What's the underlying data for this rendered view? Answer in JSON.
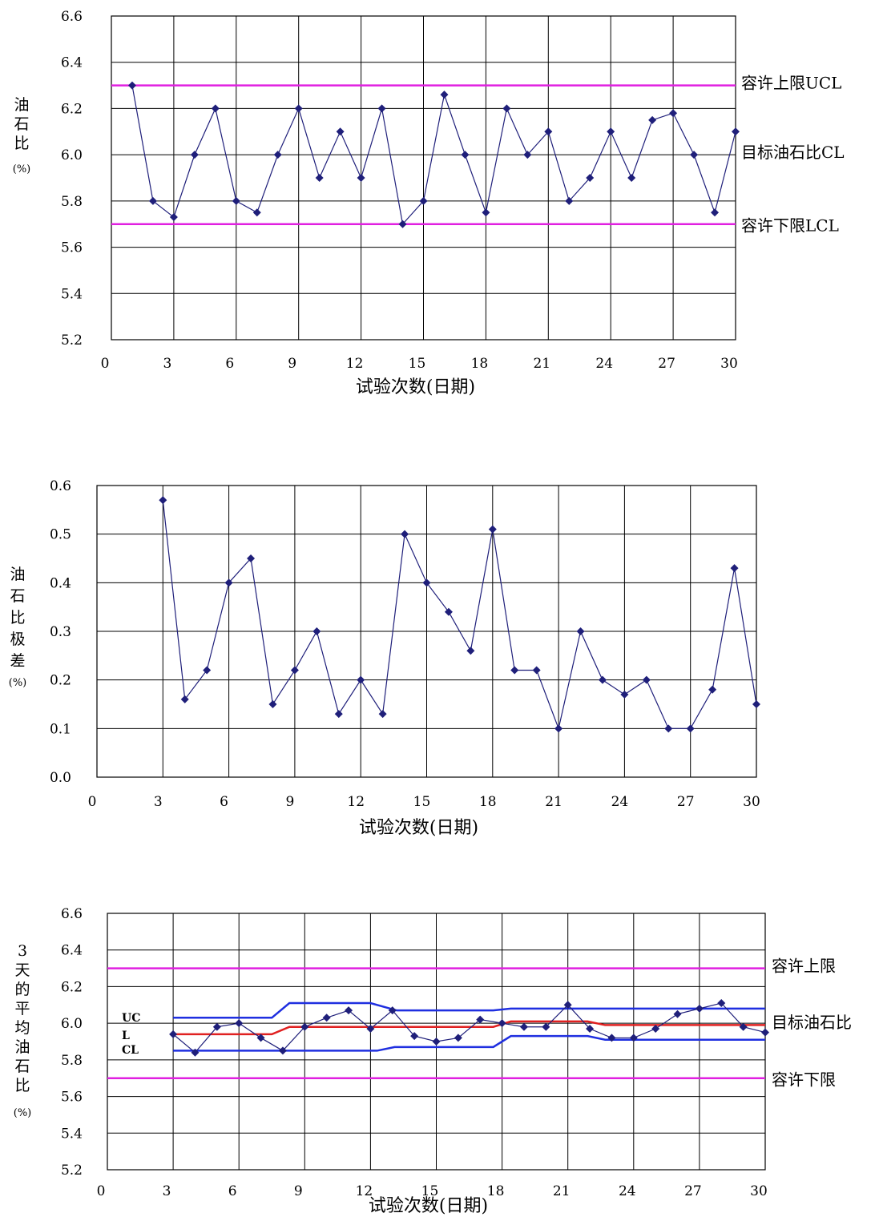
{
  "chart_data": [
    {
      "type": "line",
      "xlabel": "试验次数(日期)",
      "ylabel": [
        "油",
        "石",
        "比"
      ],
      "yunit": "(%)",
      "xlim": [
        0,
        30
      ],
      "ylim": [
        5.2,
        6.6
      ],
      "xticks": [
        "0",
        "3",
        "6",
        "9",
        "12",
        "15",
        "18",
        "21",
        "24",
        "27",
        "30"
      ],
      "yticks": [
        "5.2",
        "5.4",
        "5.6",
        "5.8",
        "6.0",
        "6.2",
        "6.4",
        "6.6"
      ],
      "grid": true,
      "colors": {
        "series": "#1f1f7a",
        "limit": "#e020e0"
      },
      "hlines": [
        {
          "label": "容许上限UCL",
          "value": 6.3,
          "color": "#e020e0"
        },
        {
          "label": "目标油石比CL",
          "value": 6.0,
          "color": "none"
        },
        {
          "label": "容许下限LCL",
          "value": 5.7,
          "color": "#e020e0"
        }
      ],
      "series": [
        {
          "x": [
            1,
            2,
            3,
            4,
            5,
            6,
            7,
            8,
            9,
            10,
            11,
            12,
            13,
            14,
            15,
            16,
            17,
            18,
            19,
            20,
            21,
            22,
            23,
            24,
            25,
            26,
            27,
            28,
            29,
            30
          ],
          "values": [
            6.3,
            5.8,
            5.73,
            6.0,
            6.2,
            5.8,
            5.75,
            6.0,
            6.2,
            5.9,
            6.1,
            5.9,
            6.2,
            5.7,
            5.8,
            6.26,
            6.0,
            5.75,
            6.2,
            6.0,
            6.1,
            5.8,
            5.9,
            6.1,
            5.9,
            6.15,
            6.18,
            6.0,
            5.75,
            6.1
          ]
        }
      ]
    },
    {
      "type": "line",
      "xlabel": "试验次数(日期)",
      "ylabel": [
        "油",
        "石",
        "比",
        "极",
        "差"
      ],
      "yunit": "(%)",
      "xlim": [
        0,
        30
      ],
      "ylim": [
        0.0,
        0.6
      ],
      "xticks": [
        "0",
        "3",
        "6",
        "9",
        "12",
        "15",
        "18",
        "21",
        "24",
        "27",
        "30"
      ],
      "yticks": [
        "0.0",
        "0.1",
        "0.2",
        "0.3",
        "0.4",
        "0.5",
        "0.6"
      ],
      "grid": true,
      "colors": {
        "series": "#1f1f7a"
      },
      "series": [
        {
          "x": [
            3,
            4,
            5,
            6,
            7,
            8,
            9,
            10,
            11,
            12,
            13,
            14,
            15,
            16,
            17,
            18,
            19,
            20,
            21,
            22,
            23,
            24,
            25,
            26,
            27,
            28,
            29,
            30
          ],
          "values": [
            0.57,
            0.16,
            0.22,
            0.4,
            0.45,
            0.15,
            0.22,
            0.3,
            0.13,
            0.2,
            0.13,
            0.5,
            0.4,
            0.34,
            0.26,
            0.51,
            0.22,
            0.22,
            0.1,
            0.3,
            0.2,
            0.17,
            0.2,
            0.1,
            0.1,
            0.18,
            0.43,
            0.15
          ]
        }
      ]
    },
    {
      "type": "line",
      "xlabel": "试验次数(日期)",
      "ylabel": [
        "3",
        "天",
        "的",
        "平",
        "均",
        "油",
        "石",
        "比"
      ],
      "yunit": "(%)",
      "xlim": [
        0,
        30
      ],
      "ylim": [
        5.2,
        6.6
      ],
      "xticks": [
        "0",
        "3",
        "6",
        "9",
        "12",
        "15",
        "18",
        "21",
        "24",
        "27",
        "30"
      ],
      "yticks": [
        "5.2",
        "5.4",
        "5.6",
        "5.8",
        "6.0",
        "6.2",
        "6.4",
        "6.6"
      ],
      "grid": true,
      "colors": {
        "series": "#1f1f7a",
        "limit": "#e020e0",
        "control": "#1f2fe0",
        "center": "#e02020"
      },
      "hlines": [
        {
          "label": "容许上限",
          "value": 6.3,
          "color": "#e020e0"
        },
        {
          "label": "目标油石比",
          "value": 6.0,
          "color": "none"
        },
        {
          "label": "容许下限",
          "value": 5.7,
          "color": "#e020e0"
        }
      ],
      "inner_labels": [
        "UC",
        "L",
        "CL"
      ],
      "series": [
        {
          "x": [
            3,
            4,
            5,
            6,
            7,
            8,
            9,
            10,
            11,
            12,
            13,
            14,
            15,
            16,
            17,
            18,
            19,
            20,
            21,
            22,
            23,
            24,
            25,
            26,
            27,
            28,
            29,
            30
          ],
          "values": [
            5.94,
            5.84,
            5.98,
            6.0,
            5.92,
            5.85,
            5.98,
            6.03,
            6.07,
            5.97,
            6.07,
            5.93,
            5.9,
            5.92,
            6.02,
            6.0,
            5.98,
            5.98,
            6.1,
            5.97,
            5.92,
            5.92,
            5.97,
            6.05,
            6.08,
            6.11,
            5.98,
            5.95
          ]
        }
      ],
      "control_lines": [
        {
          "kind": "upper",
          "x": [
            3,
            7.5,
            8.3,
            12,
            13.2,
            17.6,
            18.4,
            30
          ],
          "values": [
            6.03,
            6.03,
            6.11,
            6.11,
            6.07,
            6.07,
            6.08,
            6.08
          ]
        },
        {
          "kind": "center",
          "x": [
            3,
            7.5,
            8.3,
            17.6,
            18.4,
            21.9,
            22.7,
            30
          ],
          "values": [
            5.94,
            5.94,
            5.98,
            5.98,
            6.01,
            6.01,
            5.99,
            5.99
          ]
        },
        {
          "kind": "lower",
          "x": [
            3,
            12.3,
            13.1,
            17.6,
            18.4,
            21.9,
            22.7,
            30
          ],
          "values": [
            5.85,
            5.85,
            5.87,
            5.87,
            5.93,
            5.93,
            5.91,
            5.91
          ]
        }
      ]
    }
  ]
}
